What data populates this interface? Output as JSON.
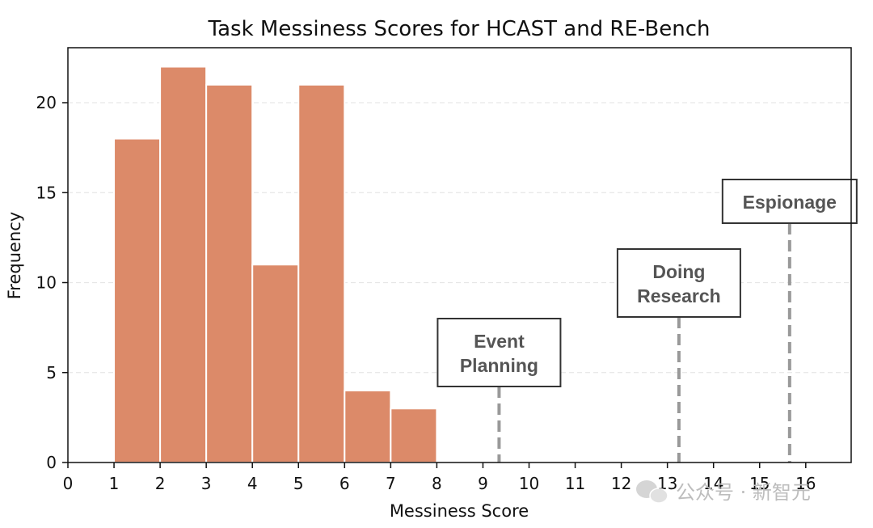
{
  "chart_data": {
    "type": "bar",
    "title": "Task Messiness Scores for HCAST and RE-Bench",
    "xlabel": "Messiness Score",
    "ylabel": "Frequency",
    "xlim": [
      0,
      17
    ],
    "ylim": [
      0,
      23
    ],
    "xticks": [
      0,
      1,
      2,
      3,
      4,
      5,
      6,
      7,
      8,
      9,
      10,
      11,
      12,
      13,
      14,
      15,
      16
    ],
    "yticks": [
      0,
      5,
      10,
      15,
      20
    ],
    "grid": "horizontal dashed",
    "bar_color": "#dc8a69",
    "bins": [
      {
        "x_start": 1,
        "x_end": 2,
        "value": 18
      },
      {
        "x_start": 2,
        "x_end": 3,
        "value": 22
      },
      {
        "x_start": 3,
        "x_end": 4,
        "value": 21
      },
      {
        "x_start": 4,
        "x_end": 5,
        "value": 11
      },
      {
        "x_start": 5,
        "x_end": 6,
        "value": 21
      },
      {
        "x_start": 6,
        "x_end": 7,
        "value": 4
      },
      {
        "x_start": 7,
        "x_end": 8,
        "value": 3
      }
    ],
    "annotations": [
      {
        "x": 9.35,
        "lines": [
          "Event",
          "Planning"
        ]
      },
      {
        "x": 13.25,
        "lines": [
          "Doing",
          "Research"
        ]
      },
      {
        "x": 15.65,
        "lines": [
          "Espionage"
        ]
      }
    ],
    "reference_line_color": "#999999"
  },
  "watermark": {
    "text": "公众号 · 新智元"
  }
}
